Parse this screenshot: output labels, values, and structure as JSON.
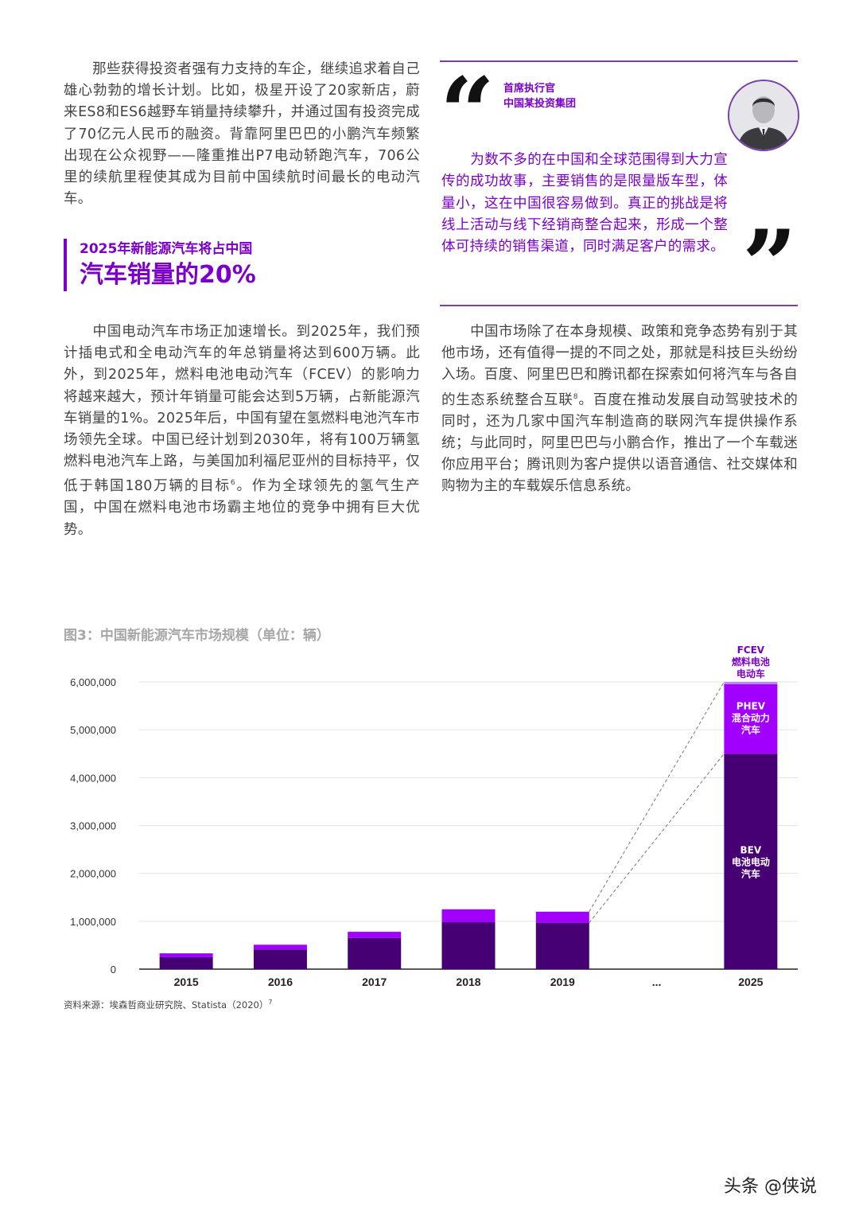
{
  "paragraphs": {
    "left_top": "那些获得投资者强有力支持的车企，继续追求着自己雄心勃勃的增长计划。比如，极星开设了20家新店，蔚来ES8和ES6越野车销量持续攀升，并通过国有投资完成了70亿元人民币的融资。背靠阿里巴巴的小鹏汽车频繁出现在公众视野——隆重推出P7电动轿跑汽车，706公里的续航里程使其成为目前中国续航时间最长的电动汽车。",
    "left_bottom_a": "中国电动汽车市场正加速增长。到2025年，我们预计插电式和全电动汽车的年总销量将达到600万辆。此外，到2025年，燃料电池电动汽车（FCEV）的影响力将越来越大，预计年销量可能会达到5万辆，占新能源汽车销量的1%。2025年后，中国有望在氢燃料电池汽车市场领先全球。中国已经计划到2030年，将有100万辆氢燃料电池汽车上路，与美国加利福尼亚州的目标持平，仅低于韩国180万辆的目标",
    "left_bottom_sup": "6",
    "left_bottom_b": "。作为全球领先的氢气生产国，中国在燃料电池市场霸主地位的竞争中拥有巨大优势。",
    "right_bottom_a": "中国市场除了在本身规模、政策和竞争态势有别于其他市场，还有值得一提的不同之处，那就是科技巨头纷纷入场。百度、阿里巴巴和腾讯都在探索如何将汽车与各自的生态系统整合互联",
    "right_bottom_sup": "8",
    "right_bottom_b": "。百度在推动发展自动驾驶技术的同时，还为几家中国汽车制造商的联网汽车提供操作系统；与此同时，阿里巴巴与小鹏合作，推出了一个车载迷你应用平台；腾讯则为客户提供以语音通信、社交媒体和购物为主的车载娱乐信息系统。"
  },
  "section_heading": {
    "line1": "2025年新能源汽车将占中国",
    "line2": "汽车销量的20%"
  },
  "quote": {
    "open_mark": "“",
    "close_mark": "”",
    "speaker_title": "首席执行官",
    "speaker_org": "中国某投资集团",
    "text": "为数不多的在中国和全球范围得到大力宣传的成功故事，主要销售的是限量版车型，体量小，这在中国很容易做到。真正的挑战是将线上活动与线下经销商整合起来，形成一个整体可持续的销售渠道，同时满足客户的需求。"
  },
  "chart_title": "图3：中国新能源汽车市场规模（单位：辆）",
  "source": {
    "text": "资料来源：埃森哲商业研究院、Statista（2020）",
    "sup": "7"
  },
  "watermark": "头条 @侠说",
  "colors": {
    "accent": "#7b00c9",
    "bev": "#460073",
    "phev": "#a100ff",
    "fcev": "#be82ff",
    "rule": "#7b3fa8"
  },
  "chart_data": {
    "type": "bar",
    "stacked": true,
    "title": "图3：中国新能源汽车市场规模（单位：辆）",
    "categories": [
      "2015",
      "2016",
      "2017",
      "2018",
      "2019",
      "...",
      "2025"
    ],
    "ylim": [
      0,
      6000000
    ],
    "yticks": [
      0,
      1000000,
      2000000,
      3000000,
      4000000,
      5000000,
      6000000
    ],
    "ytick_labels": [
      "0",
      "1,000,000",
      "2,000,000",
      "3,000,000",
      "4,000,000",
      "5,000,000",
      "6,000,000"
    ],
    "grid": true,
    "series": [
      {
        "name": "BEV 电池电动汽车",
        "label_lines": [
          "BEV",
          "电池电动",
          "汽车"
        ],
        "color": "#460073",
        "values": [
          250000,
          410000,
          650000,
          980000,
          970000,
          null,
          4500000
        ]
      },
      {
        "name": "PHEV 混合动力汽车",
        "label_lines": [
          "PHEV",
          "混合动力",
          "汽车"
        ],
        "color": "#a100ff",
        "values": [
          80000,
          100000,
          130000,
          270000,
          230000,
          null,
          1450000
        ]
      },
      {
        "name": "FCEV 燃料电池电动车",
        "label_lines": [
          "FCEV",
          "燃料电池",
          "电动车"
        ],
        "color": "#be82ff",
        "values": [
          0,
          0,
          0,
          0,
          0,
          null,
          50000
        ]
      }
    ],
    "annotations": "2019年柱顶部与2025年柱之间以虚线连接"
  }
}
